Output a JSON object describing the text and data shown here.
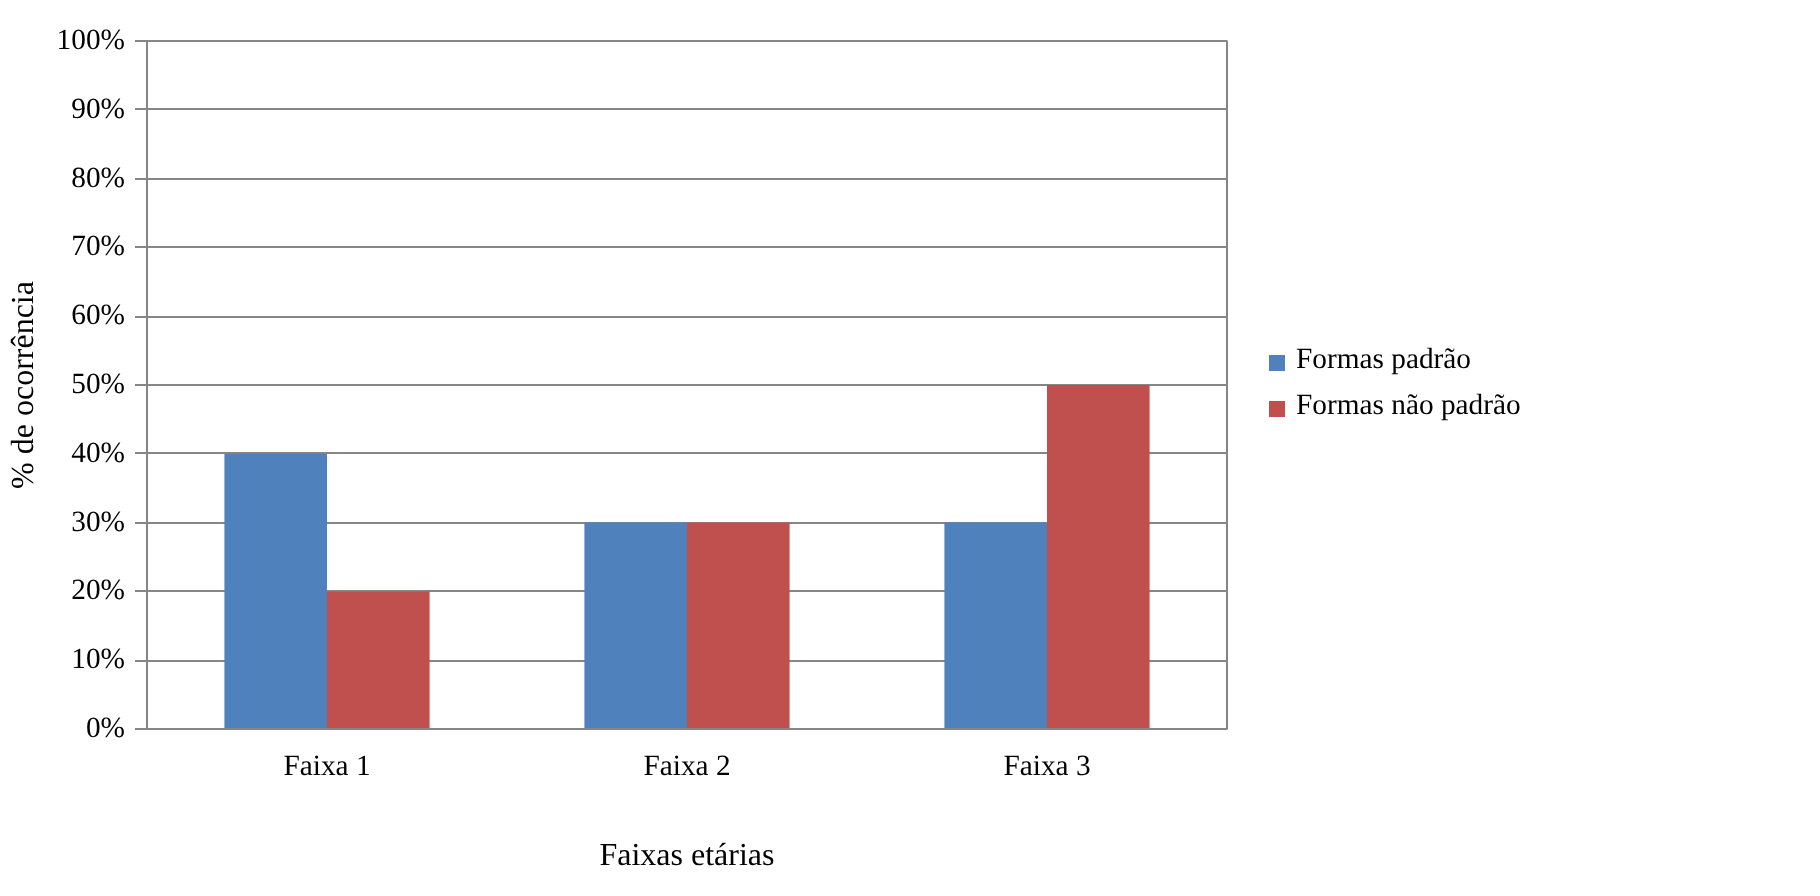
{
  "chart_data": {
    "type": "bar",
    "xlabel": "Faixas etárias",
    "ylabel": "% de ocorrência",
    "categories": [
      "Faixa 1",
      "Faixa 2",
      "Faixa 3"
    ],
    "series": [
      {
        "name": "Formas padrão",
        "color": "#4f81bd",
        "values": [
          40,
          30,
          30
        ]
      },
      {
        "name": "Formas não padrão",
        "color": "#c0504d",
        "values": [
          20,
          30,
          50
        ]
      }
    ],
    "ylim": [
      0,
      100
    ],
    "yticks": [
      {
        "value": 0,
        "label": "0%"
      },
      {
        "value": 10,
        "label": "10%"
      },
      {
        "value": 20,
        "label": "20%"
      },
      {
        "value": 30,
        "label": "30%"
      },
      {
        "value": 40,
        "label": "40%"
      },
      {
        "value": 50,
        "label": "50%"
      },
      {
        "value": 60,
        "label": "60%"
      },
      {
        "value": 70,
        "label": "70%"
      },
      {
        "value": 80,
        "label": "80%"
      },
      {
        "value": 90,
        "label": "90%"
      },
      {
        "value": 100,
        "label": "100%"
      }
    ],
    "grid": "y",
    "legend": "right"
  }
}
